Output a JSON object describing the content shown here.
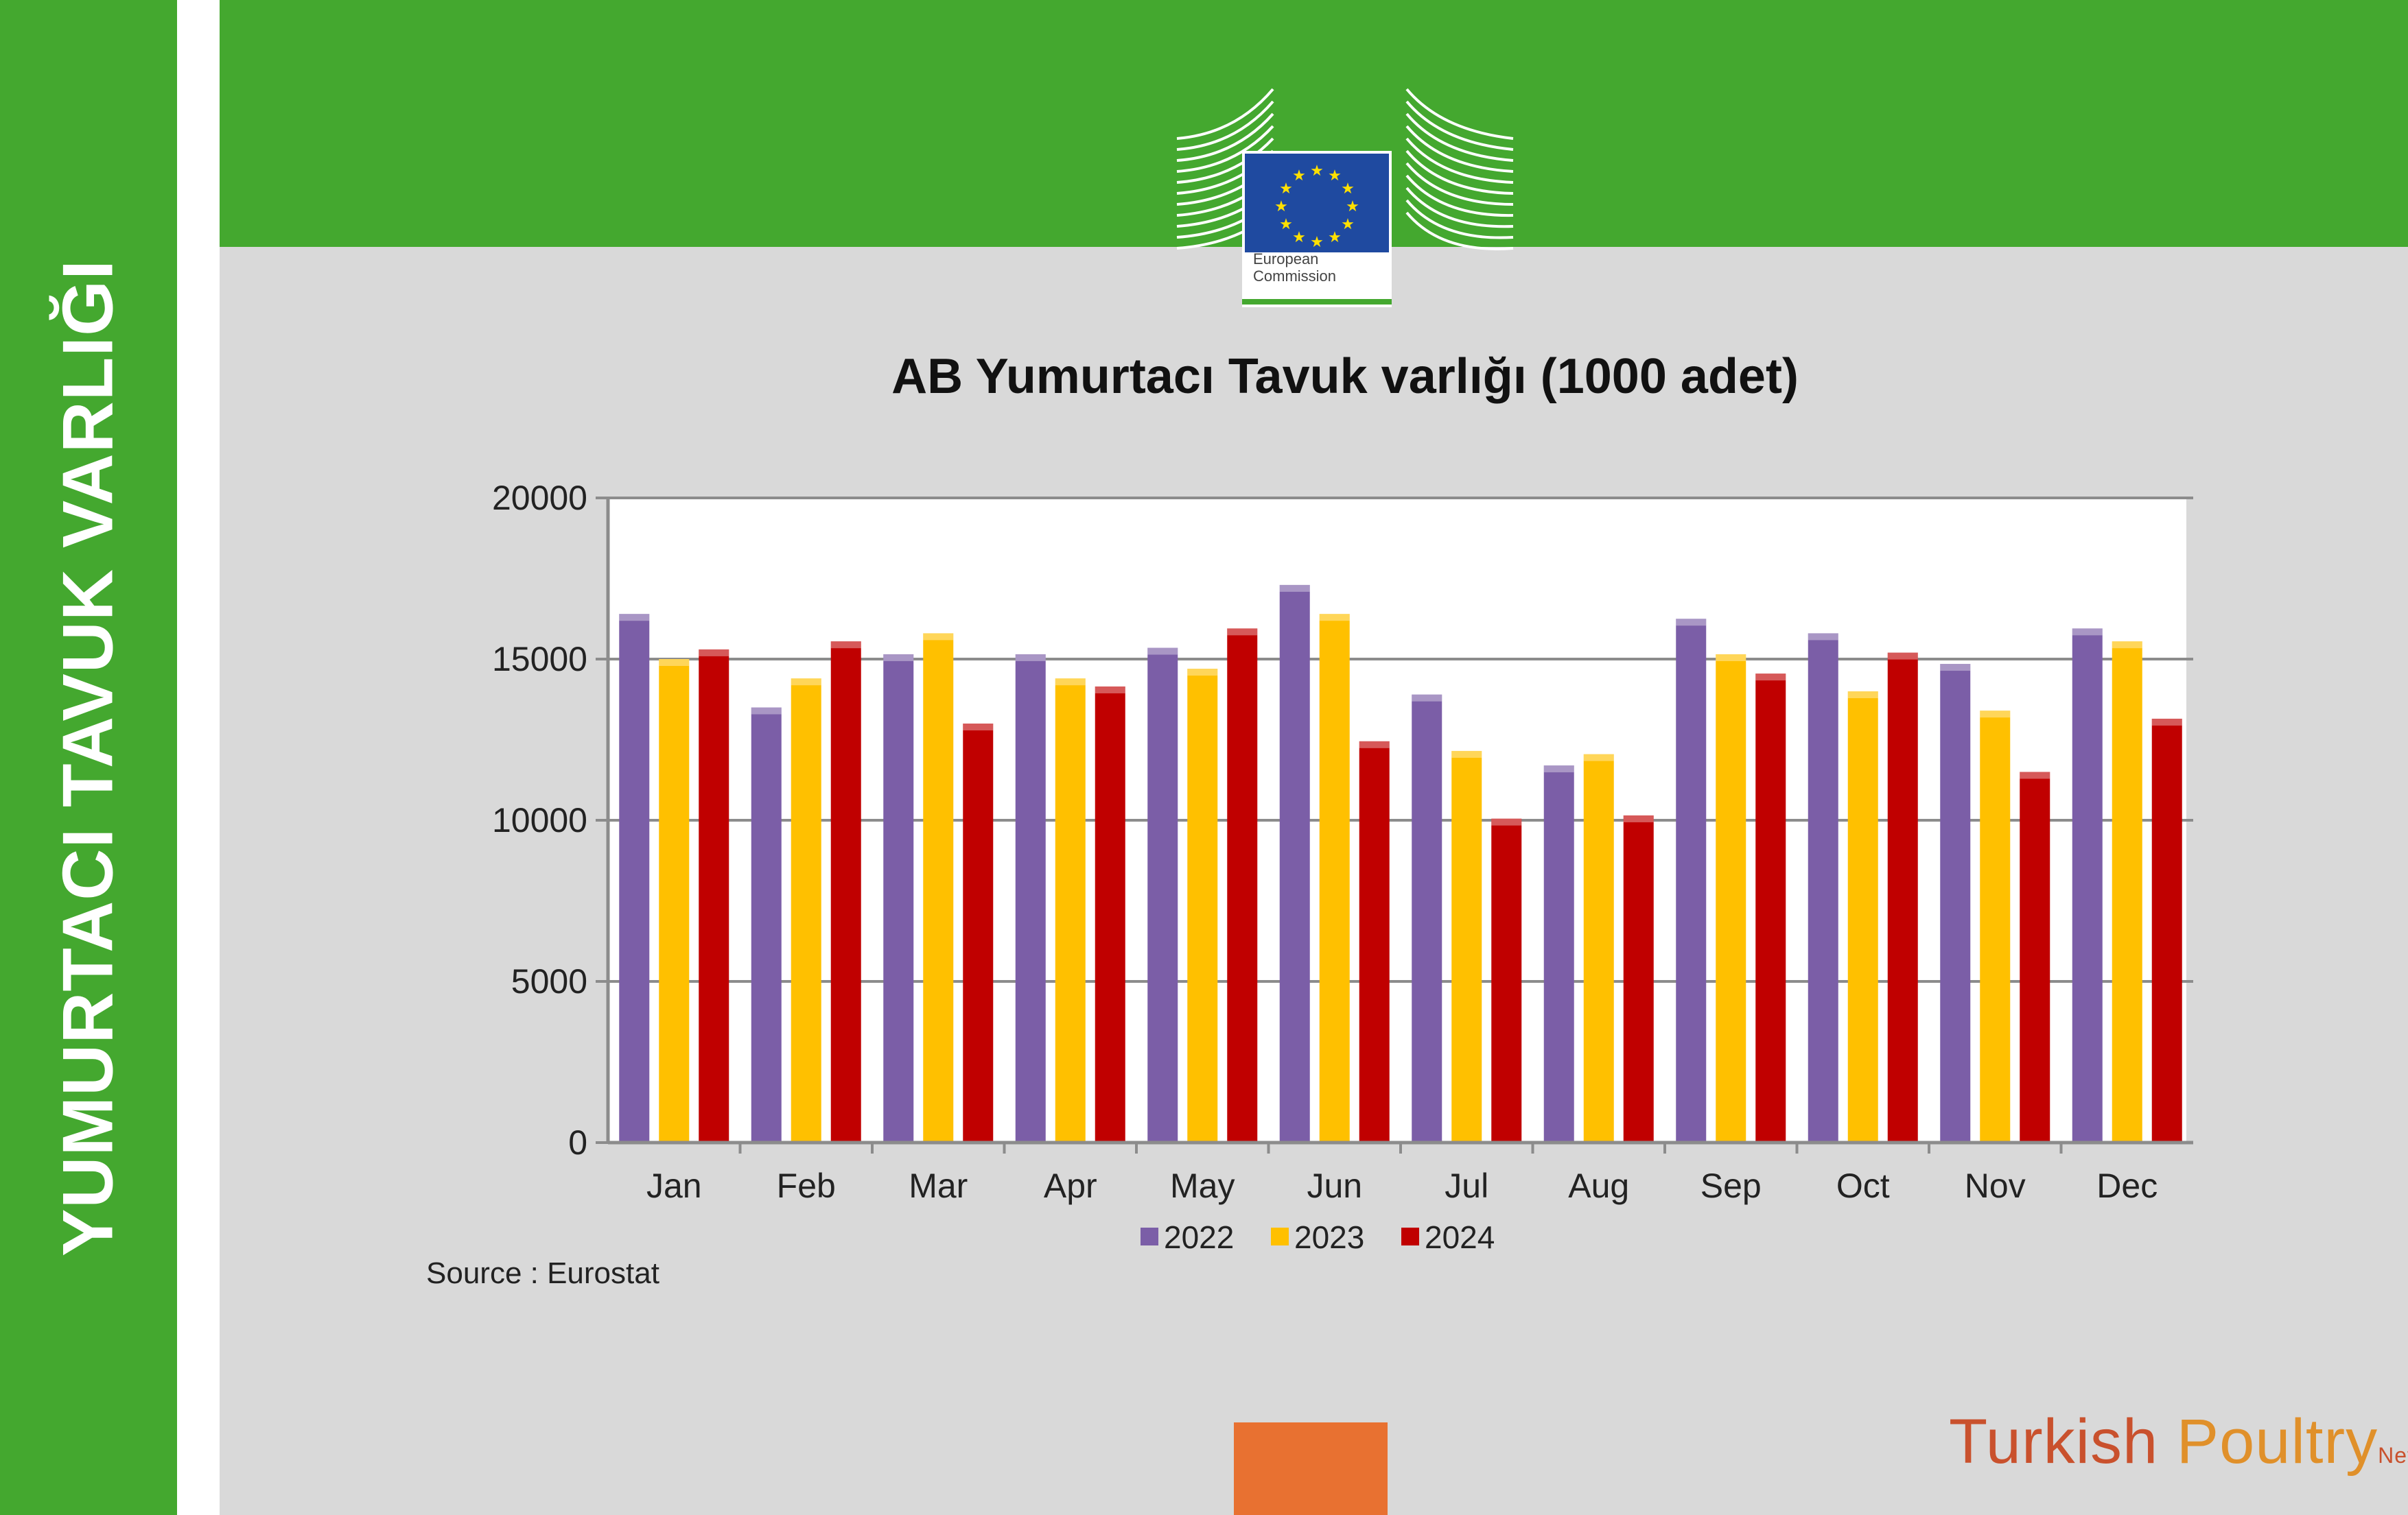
{
  "side_title": "YUMURTACI TAVUK VARLIĞI",
  "logo": {
    "line1": "European",
    "line2": "Commission"
  },
  "colors": {
    "green": "#44a82f",
    "orange": "#e87131",
    "series": [
      "#7b5ea7",
      "#ffc000",
      "#c00000"
    ]
  },
  "chart_data": {
    "type": "bar",
    "title": "AB Yumurtacı Tavuk varlığı (1000 adet)",
    "categories": [
      "Jan",
      "Feb",
      "Mar",
      "Apr",
      "May",
      "Jun",
      "Jul",
      "Aug",
      "Sep",
      "Oct",
      "Nov",
      "Dec"
    ],
    "series": [
      {
        "name": "2022",
        "color": "#7b5ea7",
        "values": [
          16400,
          13500,
          15150,
          15150,
          15350,
          17300,
          13900,
          11700,
          16250,
          15800,
          14850,
          15950
        ]
      },
      {
        "name": "2023",
        "color": "#ffc000",
        "values": [
          15000,
          14400,
          15800,
          14400,
          14700,
          16400,
          12150,
          12050,
          15150,
          14000,
          13400,
          15550
        ]
      },
      {
        "name": "2024",
        "color": "#c00000",
        "values": [
          15300,
          15550,
          13000,
          14150,
          15950,
          12450,
          10050,
          10150,
          14550,
          15200,
          11500,
          13150
        ]
      }
    ],
    "ylim": [
      0,
      20000
    ],
    "yticks": [
      "0",
      "5000",
      "10000",
      "15000",
      "20000"
    ],
    "grid": true,
    "legend": "bottom",
    "source": "Source : Eurostat"
  },
  "brand": {
    "first": "Turkish",
    "second": "Poultry",
    "suffix": "Net"
  }
}
